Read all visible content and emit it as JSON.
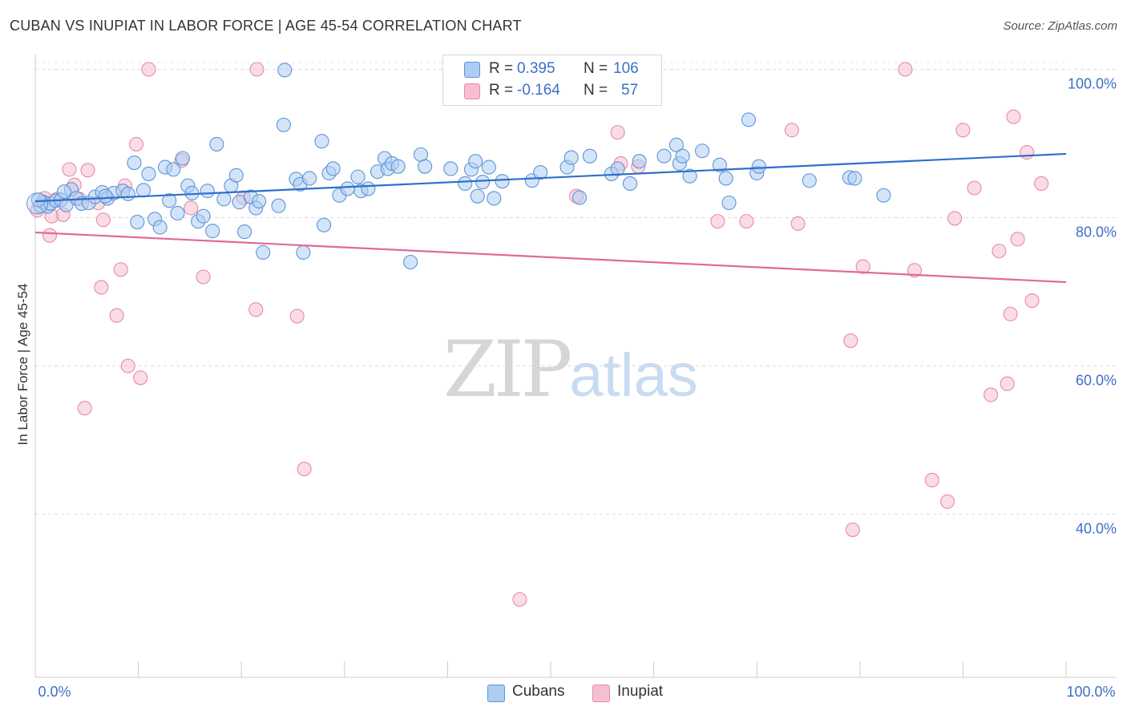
{
  "title": "CUBAN VS INUPIAT IN LABOR FORCE | AGE 45-54 CORRELATION CHART",
  "source": "Source: ZipAtlas.com",
  "watermark": {
    "zip": "ZIP",
    "atlas": "atlas"
  },
  "legend": {
    "rows": [
      {
        "r_label": "R =",
        "r_value": "0.395",
        "n_label": "N =",
        "n_value": "106"
      },
      {
        "r_label": "R =",
        "r_value": "-0.164",
        "n_label": "N =",
        "n_value": "57"
      }
    ]
  },
  "bottom_legend": [
    "Cubans",
    "Inupiat"
  ],
  "colors": {
    "cubans_fill": "#aecdf2",
    "cubans_stroke": "#5d94d8",
    "cubans_line": "#2e6fcc",
    "inupiat_fill": "#f6bfd0",
    "inupiat_stroke": "#e88aa8",
    "inupiat_line": "#e06b96"
  },
  "chart_data": {
    "type": "scatter",
    "title": "CUBAN VS INUPIAT IN LABOR FORCE | AGE 45-54 CORRELATION CHART",
    "xlabel": "",
    "ylabel": "In Labor Force | Age 45-54",
    "xlim": [
      0,
      100
    ],
    "ylim": [
      18,
      102
    ],
    "x_tick_labels": [
      "0.0%",
      "100.0%"
    ],
    "y_ticks": [
      40,
      60,
      80,
      100
    ],
    "y_tick_labels": [
      "40.0%",
      "60.0%",
      "80.0%",
      "100.0%"
    ],
    "grid": true,
    "series": [
      {
        "name": "Cubans",
        "R": 0.395,
        "N": 106,
        "trend": {
          "x": [
            0,
            100
          ],
          "y": [
            82.2,
            88.6
          ]
        },
        "points": [
          [
            0.5,
            81.6
          ],
          [
            0.8,
            82.1
          ],
          [
            1.2,
            81.5
          ],
          [
            1.5,
            81.9
          ],
          [
            2.0,
            82.3
          ],
          [
            2.5,
            82.4
          ],
          [
            3.0,
            81.7
          ],
          [
            3.5,
            83.8
          ],
          [
            4.0,
            82.6
          ],
          [
            4.5,
            81.9
          ],
          [
            5.2,
            82.0
          ],
          [
            5.8,
            82.8
          ],
          [
            6.5,
            83.4
          ],
          [
            7.0,
            82.6
          ],
          [
            7.6,
            83.3
          ],
          [
            8.5,
            83.6
          ],
          [
            9.0,
            83.2
          ],
          [
            9.6,
            87.4
          ],
          [
            9.9,
            79.4
          ],
          [
            10.5,
            83.7
          ],
          [
            11.0,
            85.9
          ],
          [
            11.6,
            79.8
          ],
          [
            12.1,
            78.7
          ],
          [
            12.6,
            86.8
          ],
          [
            13.0,
            82.3
          ],
          [
            13.4,
            86.5
          ],
          [
            13.8,
            80.6
          ],
          [
            14.3,
            88.0
          ],
          [
            14.8,
            84.3
          ],
          [
            15.2,
            83.3
          ],
          [
            15.8,
            79.5
          ],
          [
            16.3,
            80.2
          ],
          [
            16.7,
            83.6
          ],
          [
            17.2,
            78.2
          ],
          [
            17.6,
            89.9
          ],
          [
            18.3,
            82.5
          ],
          [
            19.0,
            84.3
          ],
          [
            19.5,
            85.7
          ],
          [
            19.8,
            82.1
          ],
          [
            20.3,
            78.1
          ],
          [
            20.9,
            82.8
          ],
          [
            21.4,
            81.3
          ],
          [
            21.7,
            82.2
          ],
          [
            22.1,
            75.3
          ],
          [
            23.6,
            81.6
          ],
          [
            24.1,
            92.5
          ],
          [
            24.2,
            99.9
          ],
          [
            25.3,
            85.2
          ],
          [
            25.7,
            84.5
          ],
          [
            26.0,
            75.3
          ],
          [
            26.6,
            85.3
          ],
          [
            27.8,
            90.3
          ],
          [
            28.0,
            79.0
          ],
          [
            28.5,
            86.0
          ],
          [
            28.9,
            86.6
          ],
          [
            29.5,
            83.0
          ],
          [
            30.3,
            83.9
          ],
          [
            31.3,
            85.5
          ],
          [
            31.6,
            83.6
          ],
          [
            32.3,
            83.9
          ],
          [
            33.2,
            86.2
          ],
          [
            33.9,
            88.0
          ],
          [
            34.2,
            86.6
          ],
          [
            34.6,
            87.3
          ],
          [
            35.2,
            86.9
          ],
          [
            36.4,
            74.0
          ],
          [
            37.4,
            88.5
          ],
          [
            37.8,
            86.9
          ],
          [
            40.3,
            86.6
          ],
          [
            41.7,
            84.6
          ],
          [
            42.3,
            86.5
          ],
          [
            42.7,
            87.6
          ],
          [
            42.9,
            82.9
          ],
          [
            43.4,
            84.8
          ],
          [
            44.0,
            86.8
          ],
          [
            44.5,
            82.6
          ],
          [
            45.3,
            84.9
          ],
          [
            48.2,
            85.0
          ],
          [
            49.0,
            86.1
          ],
          [
            51.6,
            86.8
          ],
          [
            52.0,
            88.1
          ],
          [
            52.8,
            82.7
          ],
          [
            53.8,
            88.3
          ],
          [
            55.9,
            85.9
          ],
          [
            56.5,
            86.6
          ],
          [
            57.7,
            84.6
          ],
          [
            58.6,
            87.6
          ],
          [
            61.0,
            88.3
          ],
          [
            62.2,
            89.8
          ],
          [
            62.5,
            87.3
          ],
          [
            62.8,
            88.3
          ],
          [
            63.5,
            85.6
          ],
          [
            64.7,
            89.0
          ],
          [
            66.4,
            87.1
          ],
          [
            67.0,
            85.3
          ],
          [
            67.3,
            82.0
          ],
          [
            69.2,
            93.2
          ],
          [
            70.0,
            86.0
          ],
          [
            70.2,
            86.9
          ],
          [
            75.1,
            85.0
          ],
          [
            79.0,
            85.4
          ],
          [
            79.5,
            85.3
          ],
          [
            82.3,
            83.0
          ],
          [
            0.3,
            82.4
          ],
          [
            6.8,
            82.9
          ],
          [
            2.8,
            83.5
          ]
        ]
      },
      {
        "name": "Inupiat",
        "R": -0.164,
        "N": 57,
        "trend": {
          "x": [
            0,
            100
          ],
          "y": [
            78.0,
            71.3
          ]
        },
        "points": [
          [
            0.2,
            81.0
          ],
          [
            0.9,
            82.6
          ],
          [
            1.4,
            77.6
          ],
          [
            1.6,
            80.2
          ],
          [
            2.1,
            82.5
          ],
          [
            2.7,
            80.4
          ],
          [
            3.3,
            86.5
          ],
          [
            3.8,
            84.4
          ],
          [
            4.3,
            82.5
          ],
          [
            4.8,
            54.3
          ],
          [
            5.1,
            86.4
          ],
          [
            6.1,
            82.0
          ],
          [
            6.4,
            70.6
          ],
          [
            6.6,
            79.7
          ],
          [
            7.9,
            66.8
          ],
          [
            8.3,
            73.0
          ],
          [
            8.7,
            84.3
          ],
          [
            9.0,
            60.0
          ],
          [
            9.8,
            89.9
          ],
          [
            10.2,
            58.4
          ],
          [
            11.0,
            100.0
          ],
          [
            14.2,
            87.7
          ],
          [
            15.1,
            81.3
          ],
          [
            16.3,
            72.0
          ],
          [
            20.2,
            82.7
          ],
          [
            21.4,
            67.6
          ],
          [
            21.5,
            100.0
          ],
          [
            25.4,
            66.7
          ],
          [
            26.1,
            46.1
          ],
          [
            47.0,
            28.5
          ],
          [
            52.5,
            82.9
          ],
          [
            56.5,
            91.5
          ],
          [
            56.8,
            87.3
          ],
          [
            58.5,
            86.9
          ],
          [
            66.2,
            79.5
          ],
          [
            69.0,
            79.5
          ],
          [
            73.4,
            91.8
          ],
          [
            74.0,
            79.2
          ],
          [
            79.1,
            63.4
          ],
          [
            79.3,
            37.9
          ],
          [
            80.3,
            73.4
          ],
          [
            84.4,
            100.0
          ],
          [
            85.3,
            72.9
          ],
          [
            87.0,
            44.6
          ],
          [
            88.5,
            41.7
          ],
          [
            89.2,
            79.9
          ],
          [
            90.0,
            91.8
          ],
          [
            91.1,
            84.0
          ],
          [
            92.7,
            56.1
          ],
          [
            93.5,
            75.5
          ],
          [
            94.3,
            57.6
          ],
          [
            94.6,
            67.0
          ],
          [
            94.9,
            93.6
          ],
          [
            95.3,
            77.1
          ],
          [
            96.2,
            88.8
          ],
          [
            96.7,
            68.8
          ],
          [
            97.6,
            84.6
          ]
        ]
      }
    ]
  }
}
